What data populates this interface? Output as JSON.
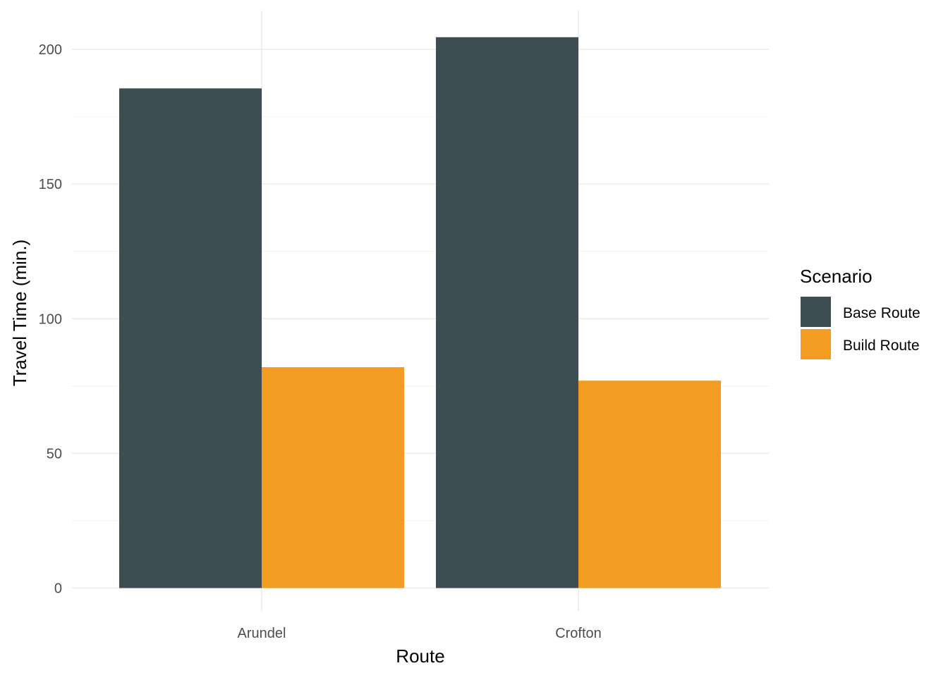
{
  "chart_data": {
    "type": "bar",
    "title": "",
    "xlabel": "Route",
    "ylabel": "Travel Time (min.)",
    "categories": [
      "Arundel",
      "Crofton"
    ],
    "series": [
      {
        "name": "Base Route",
        "values": [
          185.5,
          204.5
        ],
        "color": "#3e4c54"
      },
      {
        "name": "Build Route",
        "values": [
          82.0,
          77.0
        ],
        "color": "#f29c21"
      }
    ],
    "y_ticks": [
      0,
      50,
      100,
      150,
      200
    ],
    "ylim": [
      0,
      214.6
    ],
    "grid": true,
    "legend": {
      "title": "Scenario",
      "placement": "right"
    }
  }
}
